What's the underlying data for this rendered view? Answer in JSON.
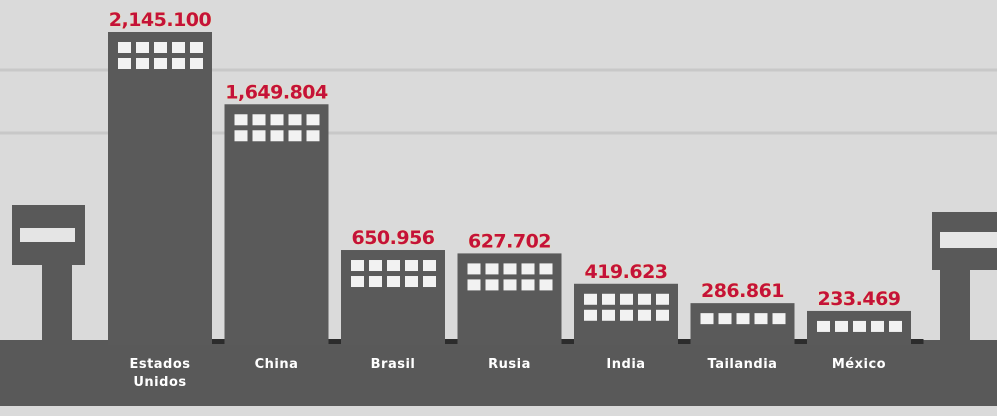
{
  "chart_data": {
    "type": "bar",
    "categories": [
      "Estados Unidos",
      "China",
      "Brasil",
      "Rusia",
      "India",
      "Tailandia",
      "México"
    ],
    "values": [
      2145100,
      1649804,
      650956,
      627702,
      419623,
      286861,
      233469
    ],
    "value_labels": [
      "2,145.100",
      "1,649.804",
      "650.956",
      "627.702",
      "419.623",
      "286.861",
      "233.469"
    ],
    "color": "#5a5a5a"
  }
}
